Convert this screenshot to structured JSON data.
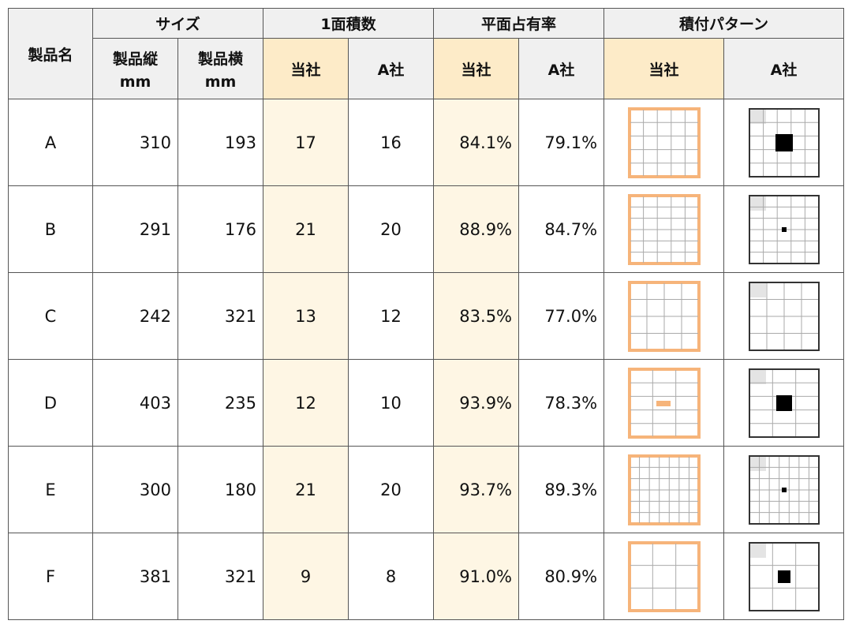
{
  "table": {
    "header": {
      "name": "製品名",
      "groups": [
        "サイズ",
        "1面積数",
        "平面占有率",
        "積付パターン"
      ],
      "size_sub": [
        {
          "label": "製品縦",
          "unit": "mm"
        },
        {
          "label": "製品横",
          "unit": "mm"
        }
      ],
      "sub": [
        "当社",
        "A社",
        "当社",
        "A社",
        "当社",
        "A社"
      ]
    },
    "rows": [
      [
        "A",
        "310",
        "193",
        "17",
        "16",
        "84.1%",
        "79.1%"
      ],
      [
        "B",
        "291",
        "176",
        "21",
        "20",
        "88.9%",
        "84.7%"
      ],
      [
        "C",
        "242",
        "321",
        "13",
        "12",
        "83.5%",
        "77.0%"
      ],
      [
        "D",
        "403",
        "235",
        "12",
        "10",
        "93.9%",
        "78.3%"
      ],
      [
        "E",
        "300",
        "180",
        "21",
        "20",
        "93.7%",
        "89.3%"
      ],
      [
        "F",
        "381",
        "321",
        "9",
        "8",
        "91.0%",
        "80.9%"
      ]
    ]
  }
}
